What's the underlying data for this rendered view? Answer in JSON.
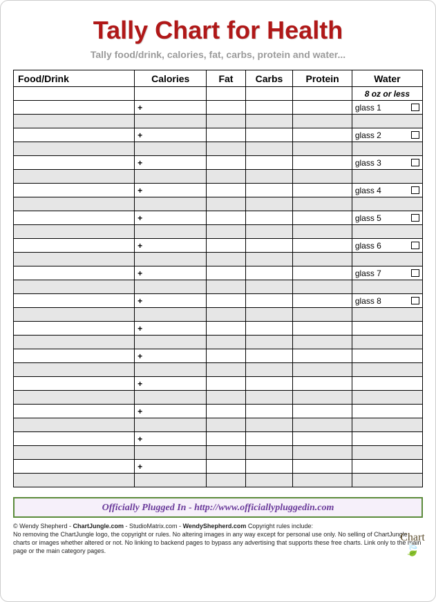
{
  "title": "Tally Chart for Health",
  "subtitle": "Tally food/drink, calories, fat, carbs, protein and water...",
  "columns": {
    "food": "Food/Drink",
    "calories": "Calories",
    "fat": "Fat",
    "carbs": "Carbs",
    "protein": "Protein",
    "water": "Water"
  },
  "water_note": "8 oz or less",
  "plus_symbol": "+",
  "water_glasses": [
    "glass 1",
    "glass 2",
    "glass 3",
    "glass 4",
    "glass 5",
    "glass 6",
    "glass 7",
    "glass 8"
  ],
  "row_pairs": 14,
  "colors": {
    "title": "#b01818",
    "subtitle": "#9a9a9a",
    "border": "#000000",
    "shaded_row": "#e6e6e6",
    "banner_border": "#5a8a3a",
    "banner_bg": "#f6f0fa",
    "banner_text": "#6a3a9a"
  },
  "banner": "Officially Plugged In - http://www.officiallypluggedin.com",
  "footer": {
    "line1_a": "© Wendy Shepherd - ",
    "line1_b": "ChartJungle.com",
    "line1_c": "  - StudioMatrix.com - ",
    "line1_d": "WendyShepherd.com",
    "line1_e": "      Copyright rules include:",
    "line2": "No removing the ChartJungle logo, the copyright or rules. No altering images in any way except for personal use only. No selling of ChartJungle charts or images whether altered or not. No linking to backend pages to bypass any advertising that supports these free charts. Link only to the main page or the main category pages."
  },
  "logo_text": "Chart",
  "chart_type": "table"
}
